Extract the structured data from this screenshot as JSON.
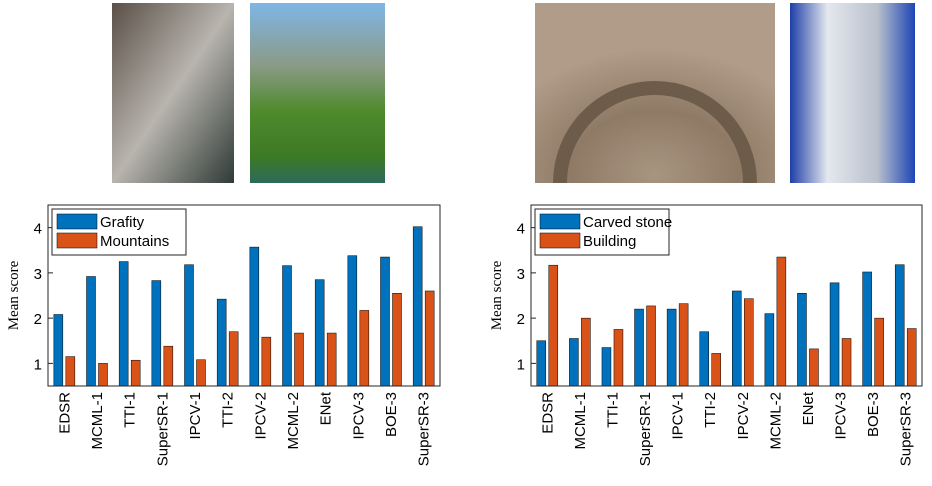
{
  "chart_data": [
    {
      "type": "bar",
      "ylabel": "Mean score",
      "categories": [
        "EDSR",
        "MCML-1",
        "TTI-1",
        "SuperSR-1",
        "IPCV-1",
        "TTI-2",
        "IPCV-2",
        "MCML-2",
        "ENet",
        "IPCV-3",
        "BOE-3",
        "SuperSR-3"
      ],
      "series": [
        {
          "name": "Grafity",
          "color": "#0072bd",
          "values": [
            2.08,
            2.92,
            3.25,
            2.83,
            3.18,
            2.42,
            3.57,
            3.16,
            2.85,
            3.38,
            3.35,
            4.02
          ]
        },
        {
          "name": "Mountains",
          "color": "#d95319",
          "values": [
            1.15,
            1.0,
            1.07,
            1.38,
            1.08,
            1.7,
            1.58,
            1.67,
            1.67,
            2.17,
            2.55,
            2.6
          ]
        }
      ],
      "ylim": [
        0.5,
        4.5
      ],
      "yticks": [
        1,
        2,
        3,
        4
      ],
      "legend": "top-left"
    },
    {
      "type": "bar",
      "ylabel": "Mean score",
      "categories": [
        "EDSR",
        "MCML-1",
        "TTI-1",
        "SuperSR-1",
        "IPCV-1",
        "TTI-2",
        "IPCV-2",
        "MCML-2",
        "ENet",
        "IPCV-3",
        "BOE-3",
        "SuperSR-3"
      ],
      "series": [
        {
          "name": "Carved stone",
          "color": "#0072bd",
          "values": [
            1.5,
            1.55,
            1.35,
            2.2,
            2.2,
            1.7,
            2.6,
            2.1,
            2.55,
            2.78,
            3.02,
            3.18
          ]
        },
        {
          "name": "Building",
          "color": "#d95319",
          "values": [
            3.17,
            2.0,
            1.75,
            2.27,
            2.32,
            1.22,
            2.43,
            3.35,
            1.32,
            1.55,
            2.0,
            1.77
          ]
        }
      ],
      "ylim": [
        0.5,
        4.5
      ],
      "yticks": [
        1,
        2,
        3,
        4
      ],
      "legend": "top-left"
    }
  ]
}
